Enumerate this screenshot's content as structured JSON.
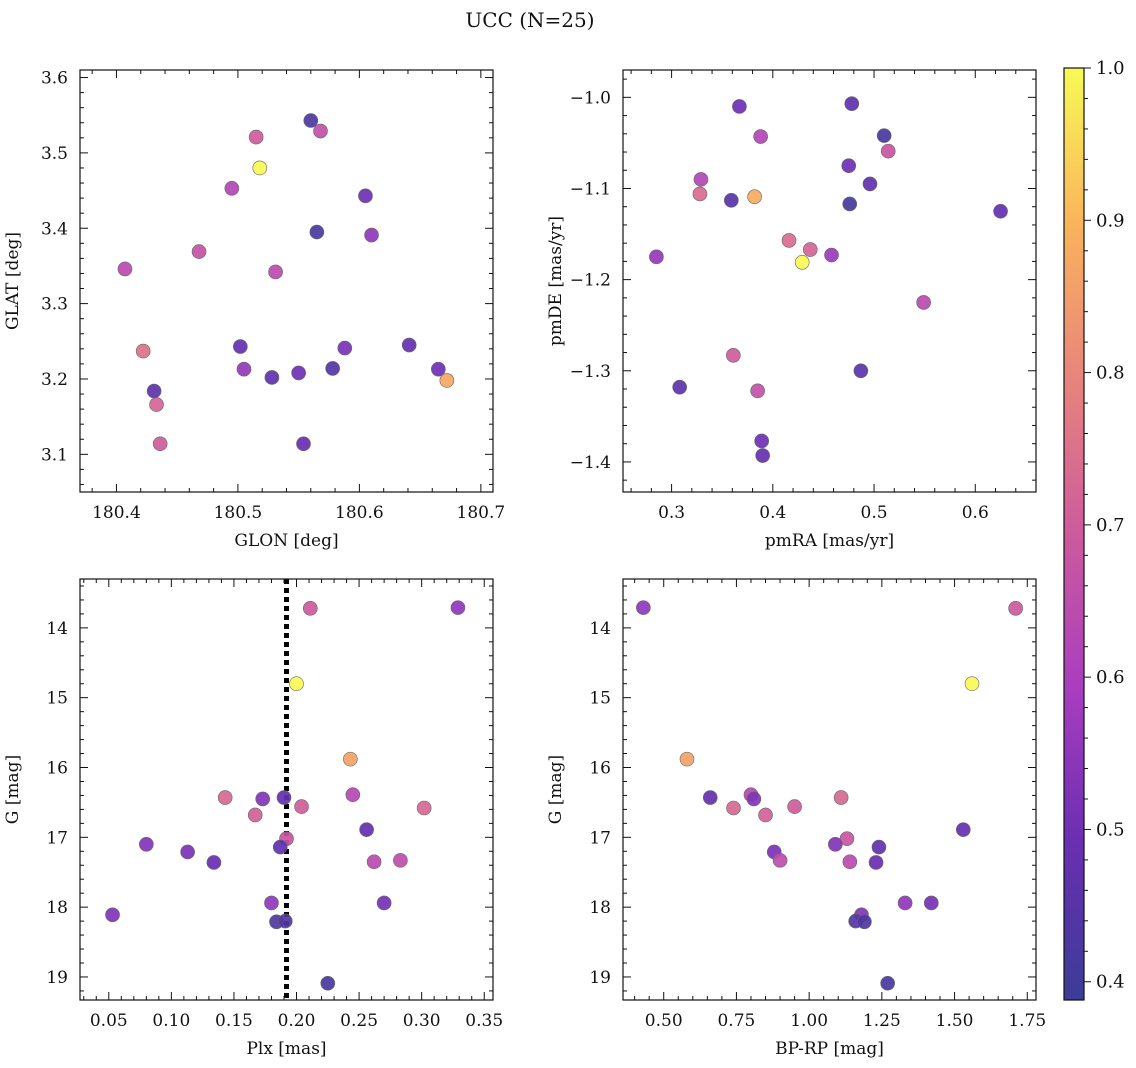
{
  "title": "UCC (N=25)",
  "colorbar": {
    "ticks": [
      0.4,
      0.5,
      0.6,
      0.7,
      0.8,
      0.9,
      1.0
    ],
    "labels": [
      "0.4",
      "0.5",
      "0.6",
      "0.7",
      "0.8",
      "0.9",
      "1.0"
    ],
    "range": [
      0.388,
      1.0
    ],
    "colormap": "plasma"
  },
  "chart_data": [
    {
      "type": "scatter",
      "id": "glon-glat",
      "xlabel": "GLON [deg]",
      "ylabel": "GLAT [deg]",
      "xlim": [
        180.37,
        180.71
      ],
      "ylim": [
        3.05,
        3.61
      ],
      "yinvert": false,
      "xticks": [
        180.4,
        180.5,
        180.6,
        180.7
      ],
      "xticklabels": [
        "180.4",
        "180.5",
        "180.6",
        "180.7"
      ],
      "yticks": [
        3.1,
        3.2,
        3.3,
        3.4,
        3.5,
        3.6
      ],
      "yticklabels": [
        "3.1",
        "3.2",
        "3.3",
        "3.4",
        "3.5",
        "3.6"
      ],
      "points": [
        {
          "x": 180.56,
          "y": 3.543,
          "c": 0.43
        },
        {
          "x": 180.515,
          "y": 3.521,
          "c": 0.7
        },
        {
          "x": 180.568,
          "y": 3.529,
          "c": 0.66
        },
        {
          "x": 180.518,
          "y": 3.48,
          "c": 1.0
        },
        {
          "x": 180.495,
          "y": 3.453,
          "c": 0.62
        },
        {
          "x": 180.605,
          "y": 3.443,
          "c": 0.5
        },
        {
          "x": 180.565,
          "y": 3.395,
          "c": 0.42
        },
        {
          "x": 180.61,
          "y": 3.391,
          "c": 0.55
        },
        {
          "x": 180.468,
          "y": 3.369,
          "c": 0.67
        },
        {
          "x": 180.407,
          "y": 3.346,
          "c": 0.64
        },
        {
          "x": 180.531,
          "y": 3.342,
          "c": 0.64
        },
        {
          "x": 180.422,
          "y": 3.237,
          "c": 0.75
        },
        {
          "x": 180.502,
          "y": 3.243,
          "c": 0.48
        },
        {
          "x": 180.588,
          "y": 3.241,
          "c": 0.52
        },
        {
          "x": 180.641,
          "y": 3.245,
          "c": 0.48
        },
        {
          "x": 180.505,
          "y": 3.213,
          "c": 0.56
        },
        {
          "x": 180.578,
          "y": 3.214,
          "c": 0.44
        },
        {
          "x": 180.665,
          "y": 3.213,
          "c": 0.5
        },
        {
          "x": 180.528,
          "y": 3.202,
          "c": 0.47
        },
        {
          "x": 180.55,
          "y": 3.208,
          "c": 0.5
        },
        {
          "x": 180.672,
          "y": 3.198,
          "c": 0.87
        },
        {
          "x": 180.431,
          "y": 3.184,
          "c": 0.46
        },
        {
          "x": 180.433,
          "y": 3.166,
          "c": 0.72
        },
        {
          "x": 180.436,
          "y": 3.114,
          "c": 0.7
        },
        {
          "x": 180.554,
          "y": 3.114,
          "c": 0.49
        }
      ]
    },
    {
      "type": "scatter",
      "id": "pmra-pmde",
      "xlabel": "pmRA [mas/yr]",
      "ylabel": "pmDE [mas/yr]",
      "xlim": [
        0.252,
        0.66
      ],
      "ylim": [
        -1.433,
        -0.97
      ],
      "yinvert": false,
      "xticks": [
        0.3,
        0.4,
        0.5,
        0.6
      ],
      "xticklabels": [
        "0.3",
        "0.4",
        "0.5",
        "0.6"
      ],
      "yticks": [
        -1.4,
        -1.3,
        -1.2,
        -1.1,
        -1.0
      ],
      "yticklabels": [
        "−1.4",
        "−1.3",
        "−1.2",
        "−1.1",
        "−1.0"
      ],
      "points": [
        {
          "x": 0.367,
          "y": -1.01,
          "c": 0.5
        },
        {
          "x": 0.478,
          "y": -1.007,
          "c": 0.47
        },
        {
          "x": 0.51,
          "y": -1.042,
          "c": 0.42
        },
        {
          "x": 0.388,
          "y": -1.043,
          "c": 0.62
        },
        {
          "x": 0.514,
          "y": -1.059,
          "c": 0.68
        },
        {
          "x": 0.475,
          "y": -1.075,
          "c": 0.5
        },
        {
          "x": 0.329,
          "y": -1.09,
          "c": 0.62
        },
        {
          "x": 0.496,
          "y": -1.095,
          "c": 0.47
        },
        {
          "x": 0.328,
          "y": -1.106,
          "c": 0.74
        },
        {
          "x": 0.382,
          "y": -1.109,
          "c": 0.88
        },
        {
          "x": 0.359,
          "y": -1.113,
          "c": 0.45
        },
        {
          "x": 0.476,
          "y": -1.117,
          "c": 0.41
        },
        {
          "x": 0.625,
          "y": -1.125,
          "c": 0.48
        },
        {
          "x": 0.416,
          "y": -1.157,
          "c": 0.74
        },
        {
          "x": 0.437,
          "y": -1.167,
          "c": 0.72
        },
        {
          "x": 0.285,
          "y": -1.175,
          "c": 0.56
        },
        {
          "x": 0.458,
          "y": -1.173,
          "c": 0.57
        },
        {
          "x": 0.429,
          "y": -1.181,
          "c": 1.0
        },
        {
          "x": 0.549,
          "y": -1.225,
          "c": 0.64
        },
        {
          "x": 0.361,
          "y": -1.283,
          "c": 0.7
        },
        {
          "x": 0.487,
          "y": -1.3,
          "c": 0.46
        },
        {
          "x": 0.308,
          "y": -1.318,
          "c": 0.47
        },
        {
          "x": 0.385,
          "y": -1.322,
          "c": 0.66
        },
        {
          "x": 0.389,
          "y": -1.377,
          "c": 0.5
        },
        {
          "x": 0.39,
          "y": -1.393,
          "c": 0.48
        }
      ]
    },
    {
      "type": "scatter",
      "id": "plx-g",
      "xlabel": "Plx [mas]",
      "ylabel": "G [mag]",
      "xlim": [
        0.027,
        0.357
      ],
      "ylim": [
        13.3,
        19.33
      ],
      "yinvert": true,
      "xticks": [
        0.05,
        0.1,
        0.15,
        0.2,
        0.25,
        0.3,
        0.35
      ],
      "xticklabels": [
        "0.05",
        "0.10",
        "0.15",
        "0.20",
        "0.25",
        "0.30",
        "0.35"
      ],
      "yticks": [
        14,
        15,
        16,
        17,
        18,
        19
      ],
      "yticklabels": [
        "14",
        "15",
        "16",
        "17",
        "18",
        "19"
      ],
      "vline": {
        "x": 0.192,
        "style": "dotted",
        "color": "#000000"
      },
      "points": [
        {
          "x": 0.211,
          "y": 13.72,
          "c": 0.69
        },
        {
          "x": 0.329,
          "y": 13.71,
          "c": 0.55
        },
        {
          "x": 0.2,
          "y": 14.8,
          "c": 1.0
        },
        {
          "x": 0.243,
          "y": 15.88,
          "c": 0.86
        },
        {
          "x": 0.143,
          "y": 16.43,
          "c": 0.73
        },
        {
          "x": 0.173,
          "y": 16.45,
          "c": 0.53
        },
        {
          "x": 0.19,
          "y": 16.43,
          "c": 0.48
        },
        {
          "x": 0.245,
          "y": 16.39,
          "c": 0.63
        },
        {
          "x": 0.204,
          "y": 16.56,
          "c": 0.7
        },
        {
          "x": 0.302,
          "y": 16.58,
          "c": 0.73
        },
        {
          "x": 0.167,
          "y": 16.68,
          "c": 0.71
        },
        {
          "x": 0.256,
          "y": 16.89,
          "c": 0.48
        },
        {
          "x": 0.192,
          "y": 17.02,
          "c": 0.68
        },
        {
          "x": 0.08,
          "y": 17.1,
          "c": 0.53
        },
        {
          "x": 0.187,
          "y": 17.14,
          "c": 0.47
        },
        {
          "x": 0.113,
          "y": 17.21,
          "c": 0.52
        },
        {
          "x": 0.134,
          "y": 17.36,
          "c": 0.49
        },
        {
          "x": 0.262,
          "y": 17.35,
          "c": 0.64
        },
        {
          "x": 0.283,
          "y": 17.33,
          "c": 0.65
        },
        {
          "x": 0.18,
          "y": 17.94,
          "c": 0.55
        },
        {
          "x": 0.27,
          "y": 17.94,
          "c": 0.51
        },
        {
          "x": 0.053,
          "y": 18.11,
          "c": 0.53
        },
        {
          "x": 0.184,
          "y": 18.21,
          "c": 0.43
        },
        {
          "x": 0.191,
          "y": 18.2,
          "c": 0.44
        },
        {
          "x": 0.225,
          "y": 19.09,
          "c": 0.42
        }
      ]
    },
    {
      "type": "scatter",
      "id": "bprp-g",
      "xlabel": "BP-RP [mag]",
      "ylabel": "G [mag]",
      "xlim": [
        0.36,
        1.78
      ],
      "ylim": [
        13.3,
        19.33
      ],
      "yinvert": true,
      "xticks": [
        0.5,
        0.75,
        1.0,
        1.25,
        1.5,
        1.75
      ],
      "xticklabels": [
        "0.50",
        "0.75",
        "1.00",
        "1.25",
        "1.50",
        "1.75"
      ],
      "yticks": [
        14,
        15,
        16,
        17,
        18,
        19
      ],
      "yticklabels": [
        "14",
        "15",
        "16",
        "17",
        "18",
        "19"
      ],
      "points": [
        {
          "x": 0.43,
          "y": 13.71,
          "c": 0.55
        },
        {
          "x": 1.71,
          "y": 13.72,
          "c": 0.69
        },
        {
          "x": 1.56,
          "y": 14.8,
          "c": 1.0
        },
        {
          "x": 0.58,
          "y": 15.88,
          "c": 0.86
        },
        {
          "x": 0.66,
          "y": 16.43,
          "c": 0.48
        },
        {
          "x": 0.8,
          "y": 16.39,
          "c": 0.63
        },
        {
          "x": 0.81,
          "y": 16.45,
          "c": 0.53
        },
        {
          "x": 1.11,
          "y": 16.43,
          "c": 0.73
        },
        {
          "x": 0.74,
          "y": 16.58,
          "c": 0.73
        },
        {
          "x": 0.95,
          "y": 16.56,
          "c": 0.7
        },
        {
          "x": 0.85,
          "y": 16.68,
          "c": 0.71
        },
        {
          "x": 1.53,
          "y": 16.89,
          "c": 0.48
        },
        {
          "x": 1.13,
          "y": 17.02,
          "c": 0.68
        },
        {
          "x": 1.09,
          "y": 17.1,
          "c": 0.53
        },
        {
          "x": 1.24,
          "y": 17.14,
          "c": 0.47
        },
        {
          "x": 0.88,
          "y": 17.21,
          "c": 0.52
        },
        {
          "x": 0.9,
          "y": 17.33,
          "c": 0.65
        },
        {
          "x": 1.14,
          "y": 17.35,
          "c": 0.64
        },
        {
          "x": 1.23,
          "y": 17.36,
          "c": 0.49
        },
        {
          "x": 1.33,
          "y": 17.94,
          "c": 0.55
        },
        {
          "x": 1.42,
          "y": 17.94,
          "c": 0.51
        },
        {
          "x": 1.18,
          "y": 18.11,
          "c": 0.53
        },
        {
          "x": 1.16,
          "y": 18.2,
          "c": 0.44
        },
        {
          "x": 1.19,
          "y": 18.21,
          "c": 0.43
        },
        {
          "x": 1.27,
          "y": 19.09,
          "c": 0.42
        }
      ]
    }
  ]
}
